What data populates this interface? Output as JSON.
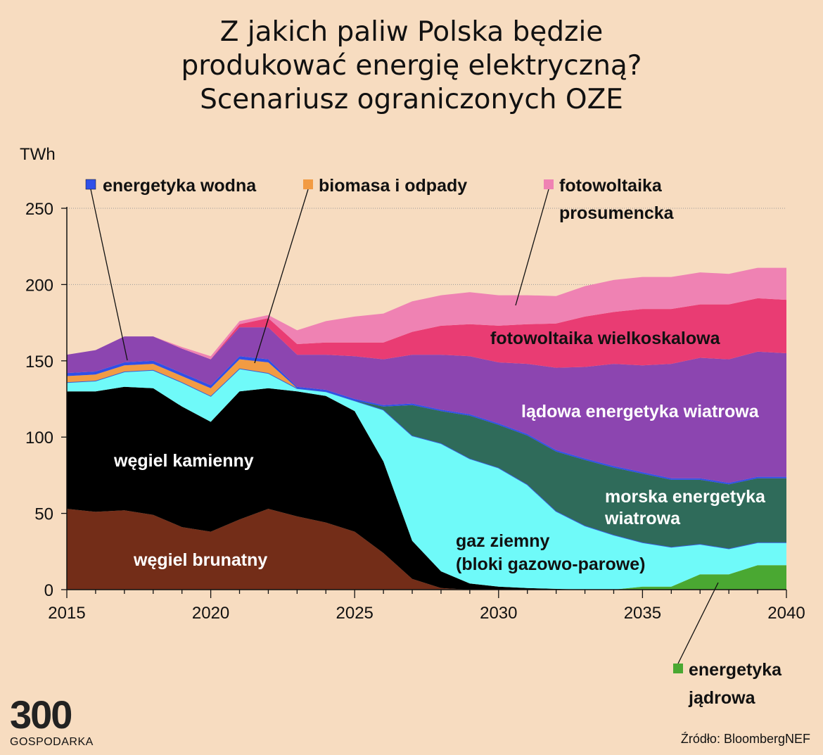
{
  "title_lines": [
    "Z jakich paliw Polska będzie",
    "produkować energię elektryczną?",
    "Scenariusz ograniczonych OZE"
  ],
  "source": "Źródło: BloombergNEF",
  "logo": {
    "number": "300",
    "name": "GOSPODARKA"
  },
  "chart_data": {
    "type": "area",
    "stacked": true,
    "ylabel": "TWh",
    "ylim": [
      0,
      250
    ],
    "xlim": [
      2015,
      2040
    ],
    "x_ticks": [
      2015,
      2020,
      2025,
      2030,
      2035,
      2040
    ],
    "y_ticks": [
      0,
      50,
      100,
      150,
      200,
      250
    ],
    "gridlines": [
      150,
      200,
      250
    ],
    "x": [
      2015,
      2016,
      2017,
      2018,
      2019,
      2020,
      2021,
      2022,
      2023,
      2024,
      2025,
      2026,
      2027,
      2028,
      2029,
      2030,
      2031,
      2032,
      2033,
      2034,
      2035,
      2036,
      2037,
      2038,
      2039,
      2040
    ],
    "series": [
      {
        "name": "energetyka jądrowa",
        "color": "#4aa832",
        "values": [
          0,
          0,
          0,
          0,
          0,
          0,
          0,
          0,
          0,
          0,
          0,
          0,
          0,
          0,
          0,
          0,
          0,
          0,
          0,
          0,
          2,
          2,
          10,
          10,
          16,
          16
        ]
      },
      {
        "name": "węgiel brunatny",
        "color": "#732d18",
        "values": [
          53,
          51,
          52,
          49,
          41,
          38,
          46,
          53,
          48,
          44,
          38,
          24,
          7,
          1,
          0,
          0,
          0,
          0,
          0,
          0,
          0,
          0,
          0,
          0,
          0,
          0
        ]
      },
      {
        "name": "węgiel kamienny",
        "color": "#000000",
        "values": [
          77,
          79,
          81,
          83,
          79,
          72,
          84,
          79,
          82,
          83,
          79,
          60,
          25,
          11,
          4,
          2,
          1,
          0.5,
          0,
          0,
          0,
          0,
          0,
          0,
          0,
          0
        ]
      },
      {
        "name": "gaz ziemny (bloki gazowo-parowe)",
        "color": "#6ffaf9",
        "values": [
          6,
          7,
          10,
          12,
          16,
          17,
          15,
          10,
          2,
          3,
          7,
          34,
          69,
          84,
          82,
          78,
          68,
          51,
          42,
          36,
          29,
          26,
          20,
          17,
          15,
          15
        ]
      },
      {
        "name": "morska energetyka wiatrowa",
        "color": "#2f6b5a",
        "values": [
          0,
          0,
          0,
          0,
          0,
          0,
          0,
          0,
          0,
          0,
          0,
          2,
          20,
          21,
          28,
          28,
          32,
          39,
          43,
          44,
          45,
          44,
          42,
          42,
          42,
          42
        ]
      },
      {
        "name": "biomasa i odpady",
        "color": "#f29b43",
        "values": [
          4,
          4,
          4,
          4,
          4,
          5,
          6,
          7,
          0,
          0,
          0,
          0,
          0,
          0,
          0,
          0,
          0,
          0,
          0,
          0,
          0,
          0,
          0,
          0,
          0,
          0
        ]
      },
      {
        "name": "energetyka wodna",
        "color": "#2f4fe8",
        "values": [
          2,
          2,
          2,
          2,
          2,
          2,
          2,
          2,
          1,
          1,
          1,
          1,
          1,
          1,
          1,
          1,
          1,
          1,
          1,
          1,
          1,
          1,
          1,
          1,
          1,
          1
        ]
      },
      {
        "name": "lądowa energetyka wiatrowa",
        "color": "#8c45b0",
        "values": [
          12,
          14,
          17,
          16,
          16,
          17,
          19,
          21,
          21,
          23,
          28,
          30,
          32,
          36,
          38,
          40,
          46,
          54,
          60,
          67,
          70,
          75,
          79,
          81,
          82,
          81
        ]
      },
      {
        "name": "fotowoltaika wielkoskalowa",
        "color": "#e93c73",
        "values": [
          0,
          0,
          0,
          0,
          0,
          0,
          2,
          6,
          7,
          8,
          9,
          11,
          15,
          19,
          21,
          24,
          26,
          29,
          33,
          34,
          37,
          36,
          35,
          36,
          35,
          35
        ]
      },
      {
        "name": "fotowoltaika prosumencka",
        "color": "#ef82b3",
        "values": [
          0,
          0,
          0,
          0,
          1,
          2,
          2,
          2,
          9,
          14,
          17,
          19,
          20,
          20,
          21,
          20,
          19,
          18,
          20,
          21,
          21,
          21,
          21,
          20,
          20,
          21
        ]
      }
    ],
    "labels": {
      "hydro": "energetyka wodna",
      "biomass": "biomasa i odpady",
      "pv_prosumer_1": "fotowoltaika",
      "pv_prosumer_2": "prosumencka",
      "pv_utility": "fotowoltaika wielkoskalowa",
      "onshore": "lądowa energetyka wiatrowa",
      "hard_coal": "węgiel kamienny",
      "offshore_1": "morska energetyka",
      "offshore_2": "wiatrowa",
      "gas_1": "gaz ziemny",
      "gas_2": "(bloki gazowo-parowe)",
      "lignite": "węgiel brunatny",
      "nuclear_1": "energetyka",
      "nuclear_2": "jądrowa"
    }
  }
}
